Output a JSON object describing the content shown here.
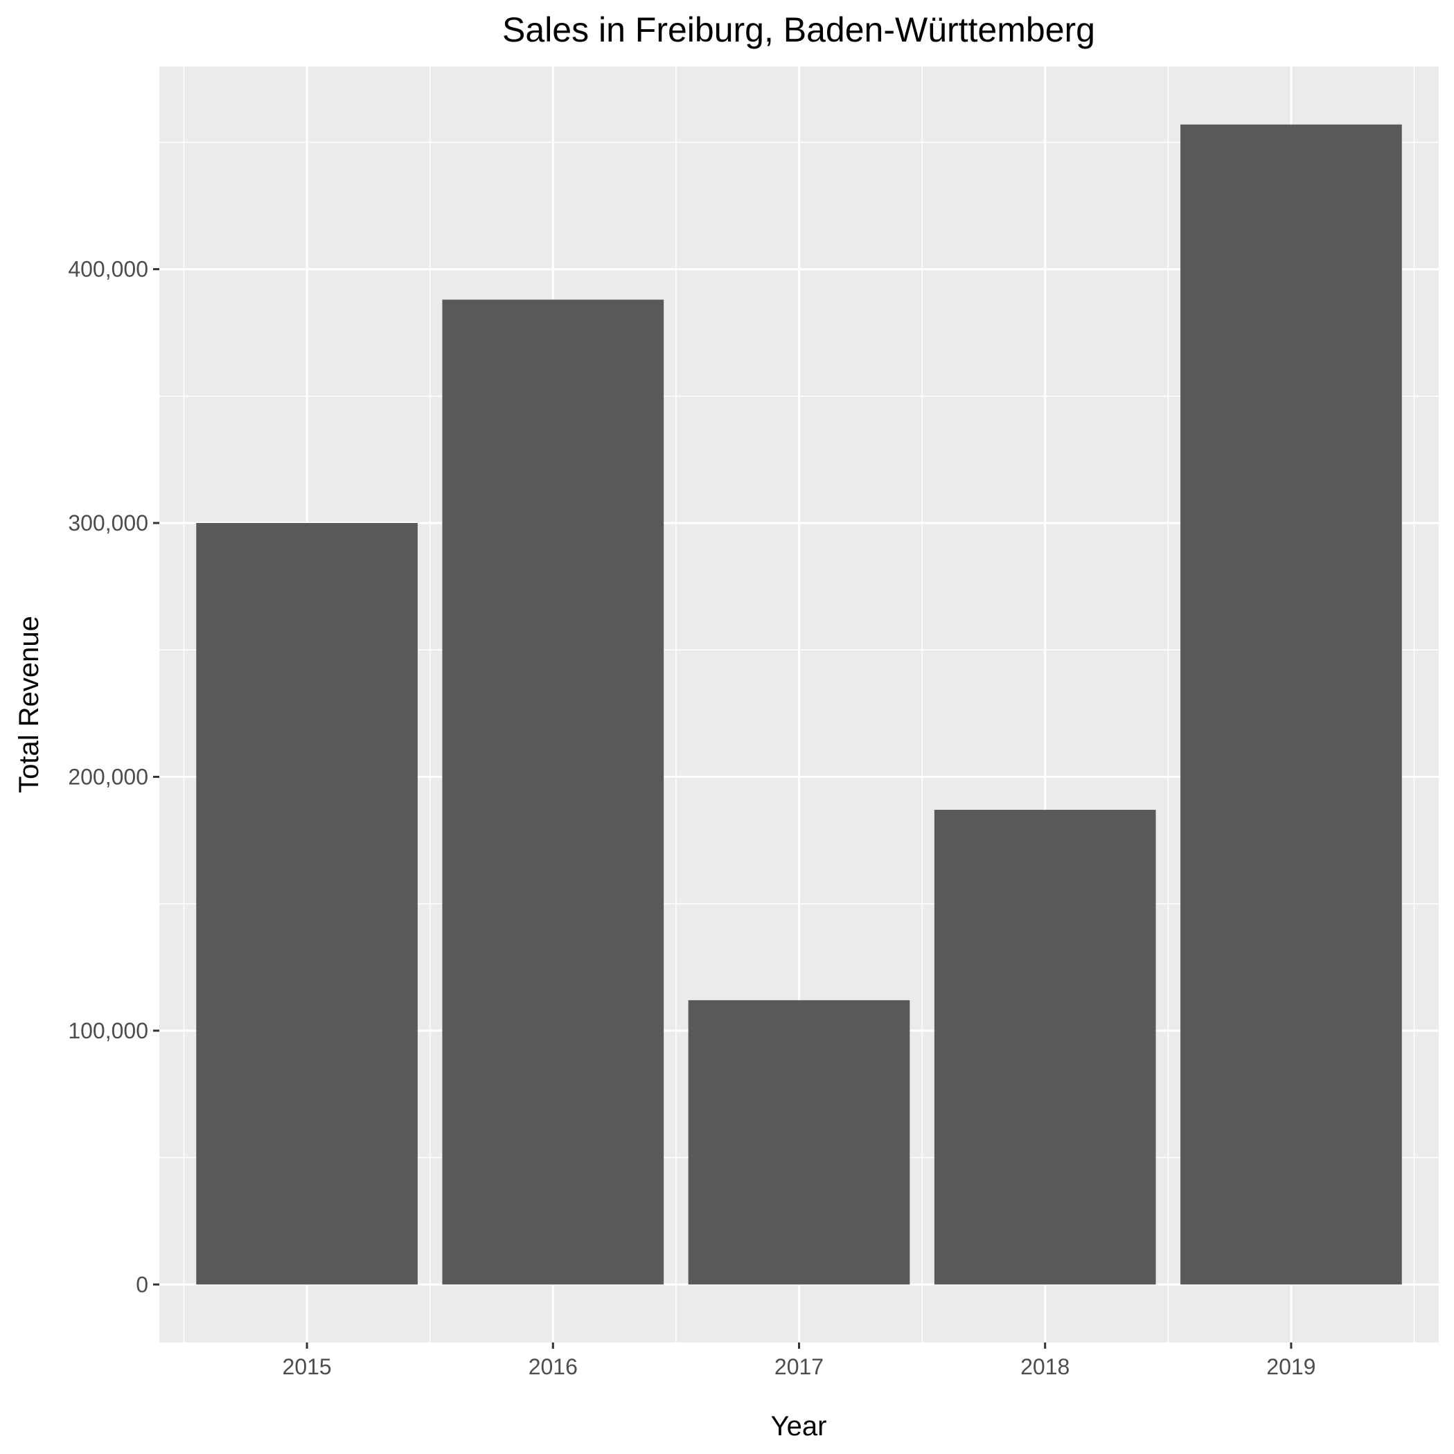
{
  "chart_data": {
    "type": "bar",
    "title": "Sales in Freiburg, Baden-Württemberg",
    "xlabel": "Year",
    "ylabel": "Total Revenue",
    "categories": [
      "2015",
      "2016",
      "2017",
      "2018",
      "2019"
    ],
    "values": [
      300000,
      388000,
      112000,
      187000,
      457000
    ],
    "ylim": [
      -22850,
      479850
    ],
    "yticks": [
      0,
      100000,
      200000,
      300000,
      400000
    ],
    "ytick_labels": [
      "0",
      "100,000",
      "200,000",
      "300,000",
      "400,000"
    ],
    "grid": true,
    "legend": "none",
    "colors": {
      "bar": "#595959",
      "panel_background": "#ebebeb",
      "grid_line": "#ffffff",
      "tick_text": "#4d4d4d",
      "tick_mark": "#333333"
    }
  }
}
